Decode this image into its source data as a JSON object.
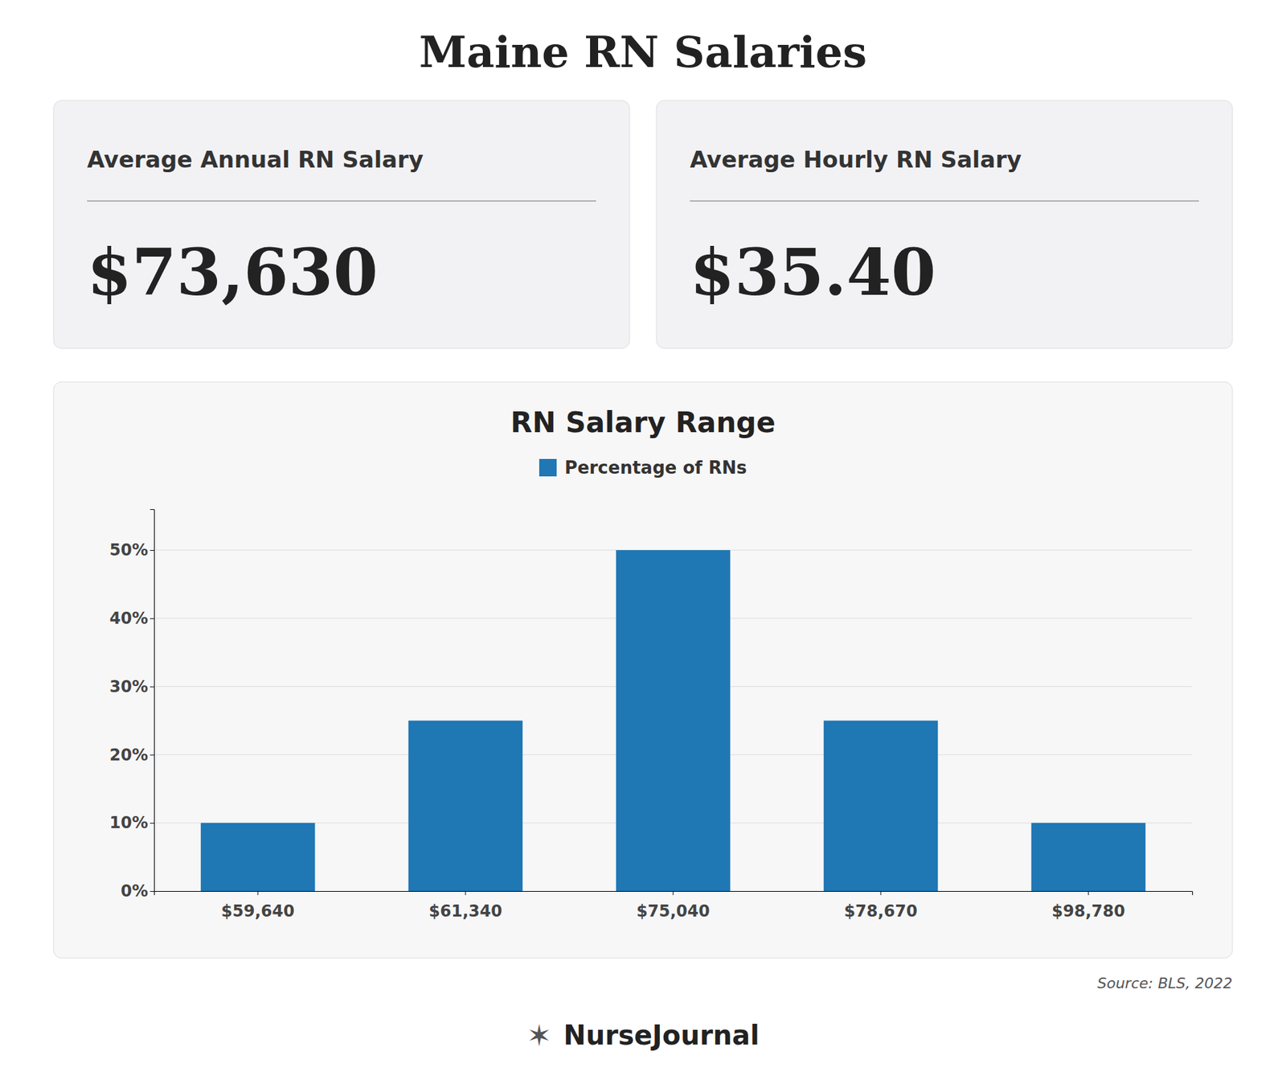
{
  "title": "Maine RN Salaries",
  "cards": [
    {
      "label": "Average Annual RN Salary",
      "value": "$73,630"
    },
    {
      "label": "Average Hourly RN Salary",
      "value": "$35.40"
    }
  ],
  "chart_data": {
    "type": "bar",
    "title": "RN Salary Range",
    "categories": [
      "$59,640",
      "$61,340",
      "$75,040",
      "$78,670",
      "$98,780"
    ],
    "series": [
      {
        "name": "Percentage of RNs",
        "values": [
          10,
          25,
          50,
          25,
          10
        ]
      }
    ],
    "ylim": [
      0,
      56
    ],
    "yticks": [
      {
        "value": 0,
        "label": "0%"
      },
      {
        "value": 10,
        "label": "10%"
      },
      {
        "value": 20,
        "label": "20%"
      },
      {
        "value": 30,
        "label": "30%"
      },
      {
        "value": 40,
        "label": "40%"
      },
      {
        "value": 50,
        "label": "50%"
      }
    ],
    "grid": true,
    "legend": "top"
  },
  "source": "Source: BLS, 2022",
  "logo": {
    "icon": "✶",
    "text": "NurseJournal"
  }
}
